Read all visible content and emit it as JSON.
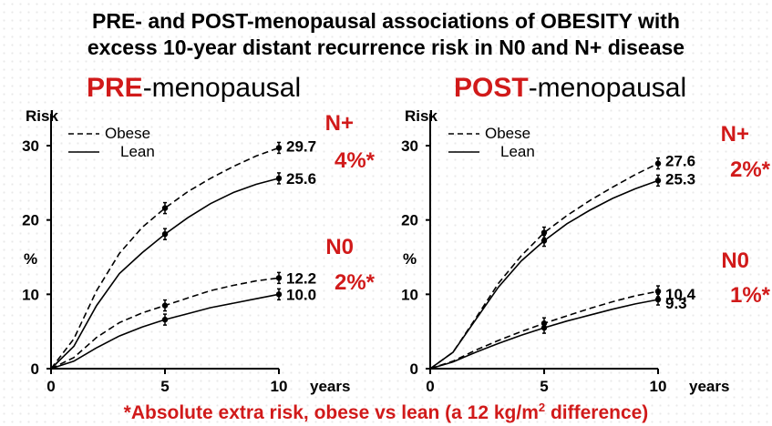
{
  "title_line1": "PRE- and POST-menopausal associations of OBESITY with",
  "title_line2": "excess 10-year distant recurrence risk in N0 and N+ disease",
  "footnote_main": "*Absolute extra risk, obese vs lean (a 12 kg/m",
  "footnote_sup": "2",
  "footnote_end": " difference)",
  "colors": {
    "accent": "#d11a1a",
    "ink": "#000000"
  },
  "chart_data": [
    {
      "type": "line",
      "title_highlight": "PRE",
      "title_rest": "-menopausal",
      "ylabel_top": "Risk",
      "ylabel_unit": "%",
      "xlabel": "years",
      "xlim": [
        0,
        10
      ],
      "ylim": [
        0,
        30
      ],
      "xticks": [
        0,
        5,
        10
      ],
      "yticks": [
        0,
        10,
        20,
        30
      ],
      "legend": [
        {
          "name": "Obese",
          "style": "dashed"
        },
        {
          "name": "Lean",
          "style": "solid"
        }
      ],
      "groups": [
        {
          "label": "N+",
          "excess": "4%*",
          "series": [
            {
              "name": "Obese",
              "style": "dashed",
              "x": [
                0,
                1,
                2,
                3,
                4,
                5,
                6,
                7,
                8,
                9,
                10
              ],
              "y": [
                0,
                4,
                10.5,
                15.5,
                19,
                21.6,
                23.8,
                25.6,
                27.2,
                28.6,
                29.7
              ],
              "end_label": "29.7",
              "points": [
                5,
                10
              ]
            },
            {
              "name": "Lean",
              "style": "solid",
              "x": [
                0,
                1,
                2,
                3,
                4,
                5,
                6,
                7,
                8,
                9,
                10
              ],
              "y": [
                0,
                3,
                8.5,
                12.8,
                15.6,
                18.1,
                20.3,
                22.2,
                23.7,
                24.8,
                25.6
              ],
              "end_label": "25.6",
              "points": [
                5,
                10
              ]
            }
          ]
        },
        {
          "label": "N0",
          "excess": "2%*",
          "series": [
            {
              "name": "Obese",
              "style": "dashed",
              "x": [
                0,
                1,
                2,
                3,
                4,
                5,
                6,
                7,
                8,
                9,
                10
              ],
              "y": [
                0,
                1.5,
                4.2,
                6.2,
                7.5,
                8.5,
                9.5,
                10.5,
                11.2,
                11.8,
                12.2
              ],
              "end_label": "12.2",
              "points": [
                5,
                10
              ]
            },
            {
              "name": "Lean",
              "style": "solid",
              "x": [
                0,
                1,
                2,
                3,
                4,
                5,
                6,
                7,
                8,
                9,
                10
              ],
              "y": [
                0,
                1.0,
                2.8,
                4.4,
                5.6,
                6.6,
                7.4,
                8.2,
                8.8,
                9.4,
                10.0
              ],
              "end_label": "10.0",
              "points": [
                5,
                10
              ]
            }
          ]
        }
      ]
    },
    {
      "type": "line",
      "title_highlight": "POST",
      "title_rest": "-menopausal",
      "ylabel_top": "Risk",
      "ylabel_unit": "%",
      "xlabel": "years",
      "xlim": [
        0,
        10
      ],
      "ylim": [
        0,
        30
      ],
      "xticks": [
        0,
        5,
        10
      ],
      "yticks": [
        0,
        10,
        20,
        30
      ],
      "legend": [
        {
          "name": "Obese",
          "style": "dashed"
        },
        {
          "name": "Lean",
          "style": "solid"
        }
      ],
      "groups": [
        {
          "label": "N+",
          "excess": "2%*",
          "series": [
            {
              "name": "Obese",
              "style": "dashed",
              "x": [
                0,
                1,
                2,
                3,
                4,
                5,
                6,
                7,
                8,
                9,
                10
              ],
              "y": [
                0,
                2.2,
                6.8,
                11.5,
                15.2,
                18.3,
                20.6,
                22.6,
                24.4,
                26.1,
                27.6
              ],
              "end_label": "27.6",
              "points": [
                5,
                10
              ]
            },
            {
              "name": "Lean",
              "style": "solid",
              "x": [
                0,
                1,
                2,
                3,
                4,
                5,
                6,
                7,
                8,
                9,
                10
              ],
              "y": [
                0,
                2.2,
                6.6,
                11.0,
                14.5,
                17.2,
                19.5,
                21.3,
                22.9,
                24.2,
                25.3
              ],
              "end_label": "25.3",
              "points": [
                5,
                10
              ]
            }
          ]
        },
        {
          "label": "N0",
          "excess": "1%*",
          "series": [
            {
              "name": "Obese",
              "style": "dashed",
              "x": [
                0,
                1,
                2,
                3,
                4,
                5,
                6,
                7,
                8,
                9,
                10
              ],
              "y": [
                0,
                1.0,
                2.5,
                3.8,
                5.0,
                6.1,
                7.1,
                8.1,
                9.0,
                9.8,
                10.4
              ],
              "end_label": "10.4",
              "points": [
                5,
                10
              ]
            },
            {
              "name": "Lean",
              "style": "solid",
              "x": [
                0,
                1,
                2,
                3,
                4,
                5,
                6,
                7,
                8,
                9,
                10
              ],
              "y": [
                0,
                0.9,
                2.2,
                3.4,
                4.5,
                5.5,
                6.4,
                7.2,
                8.0,
                8.7,
                9.3
              ],
              "end_label": "9.3",
              "points": [
                5,
                10
              ]
            }
          ]
        }
      ]
    }
  ]
}
